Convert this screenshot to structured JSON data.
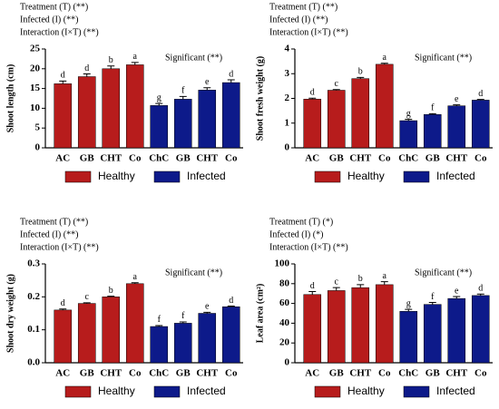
{
  "chart_data": [
    {
      "type": "bar",
      "y_label": "Shoot length (cm)",
      "annotations": [
        "Treatment (T) (**)",
        "Infected (I) (**)",
        "Interaction (I×T) (**)"
      ],
      "significance": "Significant (**)",
      "categories": [
        "AC",
        "GB",
        "CHT",
        "Co",
        "ChC",
        "GB",
        "CHT",
        "Co"
      ],
      "ylim": [
        0,
        25
      ],
      "yticks": [
        0,
        5,
        10,
        15,
        20,
        25
      ],
      "series": [
        {
          "name": "Healthy",
          "color": "#b71c1c",
          "values": [
            16.2,
            18,
            20,
            21,
            null,
            null,
            null,
            null
          ],
          "errors": [
            0.7,
            0.7,
            0.7,
            0.6,
            null,
            null,
            null,
            null
          ],
          "bar_labels": [
            "d",
            "d",
            "b",
            "a",
            null,
            null,
            null,
            null
          ]
        },
        {
          "name": "Infected",
          "color": "#0d1a8a",
          "values": [
            null,
            null,
            null,
            null,
            10.7,
            12.3,
            14.6,
            16.5
          ],
          "errors": [
            null,
            null,
            null,
            null,
            0.5,
            0.7,
            0.6,
            0.7
          ],
          "bar_labels": [
            null,
            null,
            null,
            null,
            "g",
            "f",
            "e",
            "d"
          ]
        }
      ]
    },
    {
      "type": "bar",
      "y_label": "Shoot fresh weight (g)",
      "annotations": [
        "Treatment (T) (**)",
        "Infected (I) (**)",
        "Interaction (I×T) (**)"
      ],
      "significance": "Significant (**)",
      "categories": [
        "AC",
        "GB",
        "CHT",
        "Co",
        "ChC",
        "GB",
        "CHT",
        "Co"
      ],
      "ylim": [
        0,
        4
      ],
      "yticks": [
        0,
        1,
        2,
        3,
        4
      ],
      "series": [
        {
          "name": "Healthy",
          "color": "#b71c1c",
          "values": [
            1.97,
            2.33,
            2.8,
            3.38,
            null,
            null,
            null,
            null
          ],
          "errors": [
            0.04,
            0.03,
            0.05,
            0.04,
            null,
            null,
            null,
            null
          ],
          "bar_labels": [
            "d",
            "c",
            "b",
            "a",
            null,
            null,
            null,
            null
          ]
        },
        {
          "name": "Infected",
          "color": "#0d1a8a",
          "values": [
            null,
            null,
            null,
            null,
            1.1,
            1.35,
            1.7,
            1.93
          ],
          "errors": [
            null,
            null,
            null,
            null,
            0.05,
            0.03,
            0.04,
            0.03
          ],
          "bar_labels": [
            null,
            null,
            null,
            null,
            "g",
            "f",
            "e",
            "d"
          ]
        }
      ]
    },
    {
      "type": "bar",
      "y_label": "Shoot dry weight (g)",
      "annotations": [
        "Treatment (T) (**)",
        "Infected (I) (**)",
        "Interaction (I×T) (**)"
      ],
      "significance": "Significant (**)",
      "categories": [
        "AC",
        "GB",
        "CHT",
        "Co",
        "ChC",
        "GB",
        "CHT",
        "Co"
      ],
      "ylim": [
        0,
        0.3
      ],
      "yticks": [
        {
          "value": 0,
          "label": "0.0"
        },
        0.1,
        0.2,
        0.3
      ],
      "series": [
        {
          "name": "Healthy",
          "color": "#b71c1c",
          "values": [
            0.16,
            0.18,
            0.2,
            0.24,
            null,
            null,
            null,
            null
          ],
          "errors": [
            0.003,
            0.002,
            0.002,
            0.003,
            null,
            null,
            null,
            null
          ],
          "bar_labels": [
            "d",
            "c",
            "b",
            "a",
            null,
            null,
            null,
            null
          ]
        },
        {
          "name": "Infected",
          "color": "#0d1a8a",
          "values": [
            null,
            null,
            null,
            null,
            0.11,
            0.12,
            0.15,
            0.17
          ],
          "errors": [
            null,
            null,
            null,
            null,
            0.003,
            0.004,
            0.003,
            0.002
          ],
          "bar_labels": [
            null,
            null,
            null,
            null,
            "f",
            "f",
            "e",
            "d"
          ]
        }
      ]
    },
    {
      "type": "bar",
      "y_label": "Leaf area (cm²)",
      "annotations": [
        "Treatment (T) (*)",
        "Infected (I) (*)",
        "Interaction (I×T) (**)"
      ],
      "significance": "Significant (**)",
      "categories": [
        "AC",
        "GB",
        "CHT",
        "Co",
        "ChC",
        "GB",
        "CHT",
        "Co"
      ],
      "ylim": [
        0,
        100
      ],
      "yticks": [
        0,
        20,
        40,
        60,
        80,
        100
      ],
      "series": [
        {
          "name": "Healthy",
          "color": "#b71c1c",
          "values": [
            69,
            73,
            76,
            79,
            null,
            null,
            null,
            null
          ],
          "errors": [
            3,
            3,
            3,
            3,
            null,
            null,
            null,
            null
          ],
          "bar_labels": [
            "d",
            "c",
            "b",
            "a",
            null,
            null,
            null,
            null
          ]
        },
        {
          "name": "Infected",
          "color": "#0d1a8a",
          "values": [
            null,
            null,
            null,
            null,
            52,
            59,
            65,
            68
          ],
          "errors": [
            null,
            null,
            null,
            null,
            2,
            2,
            2,
            1.5
          ],
          "bar_labels": [
            null,
            null,
            null,
            null,
            "g",
            "f",
            "e",
            "d"
          ]
        }
      ]
    }
  ]
}
